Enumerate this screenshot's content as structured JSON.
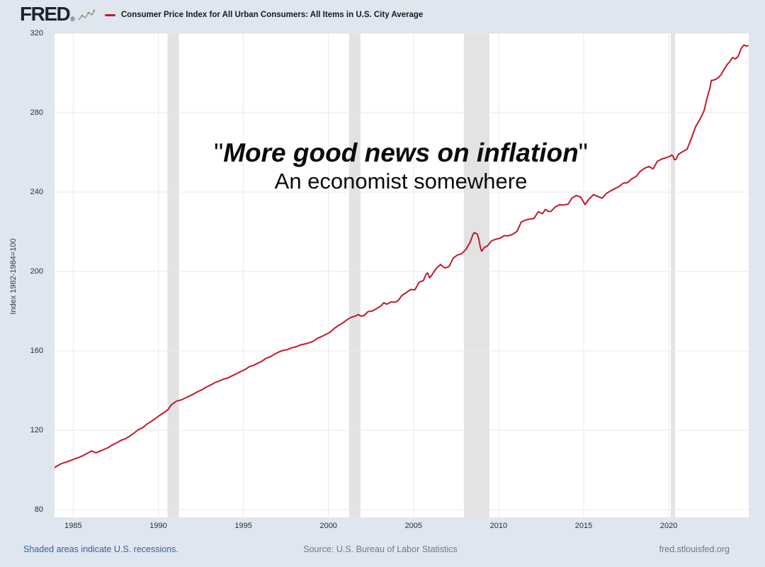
{
  "header": {
    "logo_text": "FRED",
    "registered": "®",
    "logo_icon": "line-chart-icon",
    "legend": {
      "marker": "red-line-legend-marker",
      "label": "Consumer Price Index for All Urban Consumers: All Items in U.S. City Average"
    }
  },
  "annotation": {
    "open_quote": "\"",
    "line1": "More good news on inflation",
    "close_quote": "\"",
    "line2": "An economist somewhere"
  },
  "footer": {
    "recessions_note": "Shaded areas indicate U.S. recessions.",
    "source": "Source: U.S. Bureau of Labor Statistics",
    "site": "fred.stlouisfed.org"
  },
  "colors": {
    "background": "#dfe6ef",
    "plot_background": "#ffffff",
    "line": "#bf1b2c",
    "recession_band": "#e3e3e3",
    "gridline": "#eaeaea",
    "link_blue": "#3a5e94"
  },
  "chart_data": {
    "type": "line",
    "title": "Consumer Price Index for All Urban Consumers: All Items in U.S. City Average",
    "xlabel": "",
    "ylabel": "Index 1982-1984=100",
    "x_range": [
      1983.9,
      2024.7
    ],
    "ylim": [
      80,
      320
    ],
    "y_ticks": [
      80,
      120,
      160,
      200,
      240,
      280,
      320
    ],
    "x_ticks": [
      1985,
      1990,
      1995,
      2000,
      2005,
      2010,
      2015,
      2020
    ],
    "grid": true,
    "legend_position": "top-left-header",
    "recession_bands": [
      [
        1990.54,
        1991.21
      ],
      [
        2001.21,
        2001.88
      ],
      [
        2007.96,
        2009.46
      ],
      [
        2020.12,
        2020.37
      ]
    ],
    "series": [
      {
        "name": "Consumer Price Index for All Urban Consumers: All Items in U.S. City Average",
        "units": "Index 1982-1984=100",
        "points": [
          [
            1983.9,
            101.2
          ],
          [
            1984.08,
            102.1
          ],
          [
            1984.33,
            103.3
          ],
          [
            1984.58,
            103.9
          ],
          [
            1984.83,
            104.7
          ],
          [
            1985.08,
            105.5
          ],
          [
            1985.33,
            106.3
          ],
          [
            1985.58,
            107.2
          ],
          [
            1985.83,
            108.4
          ],
          [
            1986.08,
            109.6
          ],
          [
            1986.33,
            108.6
          ],
          [
            1986.58,
            109.5
          ],
          [
            1986.83,
            110.4
          ],
          [
            1987.08,
            111.4
          ],
          [
            1987.33,
            112.7
          ],
          [
            1987.58,
            113.8
          ],
          [
            1987.83,
            115.0
          ],
          [
            1988.08,
            115.8
          ],
          [
            1988.33,
            117.1
          ],
          [
            1988.58,
            118.6
          ],
          [
            1988.83,
            120.3
          ],
          [
            1989.08,
            121.2
          ],
          [
            1989.33,
            123.1
          ],
          [
            1989.58,
            124.4
          ],
          [
            1989.83,
            125.9
          ],
          [
            1990.08,
            127.5
          ],
          [
            1990.33,
            128.9
          ],
          [
            1990.58,
            130.5
          ],
          [
            1990.75,
            132.7
          ],
          [
            1990.92,
            133.8
          ],
          [
            1991.08,
            134.7
          ],
          [
            1991.33,
            135.2
          ],
          [
            1991.58,
            136.2
          ],
          [
            1991.83,
            137.2
          ],
          [
            1992.08,
            138.3
          ],
          [
            1992.33,
            139.5
          ],
          [
            1992.58,
            140.5
          ],
          [
            1992.83,
            141.8
          ],
          [
            1993.08,
            142.8
          ],
          [
            1993.33,
            144.0
          ],
          [
            1993.58,
            144.8
          ],
          [
            1993.83,
            145.8
          ],
          [
            1994.08,
            146.3
          ],
          [
            1994.33,
            147.4
          ],
          [
            1994.58,
            148.4
          ],
          [
            1994.83,
            149.5
          ],
          [
            1995.08,
            150.5
          ],
          [
            1995.33,
            151.9
          ],
          [
            1995.58,
            152.6
          ],
          [
            1995.83,
            153.7
          ],
          [
            1996.08,
            154.7
          ],
          [
            1996.33,
            156.3
          ],
          [
            1996.58,
            157.0
          ],
          [
            1996.83,
            158.3
          ],
          [
            1997.08,
            159.4
          ],
          [
            1997.33,
            160.2
          ],
          [
            1997.58,
            160.6
          ],
          [
            1997.83,
            161.5
          ],
          [
            1998.08,
            162.0
          ],
          [
            1998.33,
            162.9
          ],
          [
            1998.58,
            163.4
          ],
          [
            1998.83,
            164.0
          ],
          [
            1999.08,
            164.7
          ],
          [
            1999.33,
            166.2
          ],
          [
            1999.58,
            167.1
          ],
          [
            1999.83,
            168.2
          ],
          [
            2000.08,
            169.3
          ],
          [
            2000.33,
            171.2
          ],
          [
            2000.58,
            172.7
          ],
          [
            2000.83,
            174.0
          ],
          [
            2001.08,
            175.6
          ],
          [
            2001.33,
            176.9
          ],
          [
            2001.58,
            177.5
          ],
          [
            2001.75,
            178.3
          ],
          [
            2001.92,
            177.5
          ],
          [
            2002.08,
            177.7
          ],
          [
            2002.33,
            179.8
          ],
          [
            2002.58,
            180.1
          ],
          [
            2002.83,
            181.3
          ],
          [
            2003.08,
            182.6
          ],
          [
            2003.25,
            184.2
          ],
          [
            2003.42,
            183.5
          ],
          [
            2003.67,
            184.6
          ],
          [
            2003.92,
            184.5
          ],
          [
            2004.08,
            185.2
          ],
          [
            2004.33,
            188.0
          ],
          [
            2004.58,
            189.4
          ],
          [
            2004.83,
            190.9
          ],
          [
            2005.08,
            190.7
          ],
          [
            2005.33,
            194.6
          ],
          [
            2005.58,
            195.4
          ],
          [
            2005.75,
            198.8
          ],
          [
            2005.83,
            199.2
          ],
          [
            2005.95,
            196.8
          ],
          [
            2006.08,
            198.3
          ],
          [
            2006.33,
            201.5
          ],
          [
            2006.58,
            203.5
          ],
          [
            2006.83,
            201.8
          ],
          [
            2007.08,
            202.4
          ],
          [
            2007.33,
            206.7
          ],
          [
            2007.58,
            208.3
          ],
          [
            2007.83,
            208.9
          ],
          [
            2008.08,
            211.1
          ],
          [
            2008.33,
            214.8
          ],
          [
            2008.5,
            218.8
          ],
          [
            2008.58,
            219.6
          ],
          [
            2008.67,
            219.1
          ],
          [
            2008.75,
            218.8
          ],
          [
            2008.83,
            216.6
          ],
          [
            2008.92,
            212.4
          ],
          [
            2009.0,
            210.2
          ],
          [
            2009.08,
            211.1
          ],
          [
            2009.17,
            212.2
          ],
          [
            2009.33,
            212.7
          ],
          [
            2009.58,
            215.4
          ],
          [
            2009.83,
            216.2
          ],
          [
            2010.08,
            216.7
          ],
          [
            2010.33,
            218.0
          ],
          [
            2010.58,
            218.0
          ],
          [
            2010.83,
            218.7
          ],
          [
            2011.08,
            220.2
          ],
          [
            2011.33,
            224.9
          ],
          [
            2011.58,
            225.9
          ],
          [
            2011.83,
            226.4
          ],
          [
            2012.08,
            226.7
          ],
          [
            2012.33,
            230.1
          ],
          [
            2012.58,
            229.1
          ],
          [
            2012.75,
            231.3
          ],
          [
            2012.92,
            230.2
          ],
          [
            2013.08,
            230.3
          ],
          [
            2013.33,
            232.5
          ],
          [
            2013.58,
            233.6
          ],
          [
            2013.83,
            233.5
          ],
          [
            2014.08,
            233.9
          ],
          [
            2014.33,
            237.1
          ],
          [
            2014.58,
            238.3
          ],
          [
            2014.83,
            237.4
          ],
          [
            2015.08,
            233.7
          ],
          [
            2015.33,
            236.6
          ],
          [
            2015.58,
            238.7
          ],
          [
            2015.83,
            237.8
          ],
          [
            2016.08,
            236.9
          ],
          [
            2016.33,
            239.3
          ],
          [
            2016.58,
            240.6
          ],
          [
            2016.83,
            241.7
          ],
          [
            2017.08,
            242.8
          ],
          [
            2017.33,
            244.5
          ],
          [
            2017.58,
            244.8
          ],
          [
            2017.83,
            246.7
          ],
          [
            2018.08,
            247.9
          ],
          [
            2018.33,
            250.5
          ],
          [
            2018.58,
            252.0
          ],
          [
            2018.83,
            252.9
          ],
          [
            2019.08,
            251.7
          ],
          [
            2019.33,
            255.5
          ],
          [
            2019.58,
            256.6
          ],
          [
            2019.83,
            257.3
          ],
          [
            2020.08,
            258.0
          ],
          [
            2020.17,
            258.7
          ],
          [
            2020.25,
            258.1
          ],
          [
            2020.33,
            256.4
          ],
          [
            2020.42,
            256.4
          ],
          [
            2020.58,
            259.1
          ],
          [
            2020.83,
            260.4
          ],
          [
            2021.08,
            261.6
          ],
          [
            2021.33,
            267.1
          ],
          [
            2021.58,
            273.0
          ],
          [
            2021.83,
            276.6
          ],
          [
            2022.08,
            281.1
          ],
          [
            2022.25,
            287.5
          ],
          [
            2022.42,
            292.3
          ],
          [
            2022.5,
            296.3
          ],
          [
            2022.58,
            296.3
          ],
          [
            2022.75,
            296.8
          ],
          [
            2022.92,
            297.7
          ],
          [
            2023.08,
            299.2
          ],
          [
            2023.25,
            301.8
          ],
          [
            2023.42,
            304.1
          ],
          [
            2023.58,
            305.7
          ],
          [
            2023.75,
            307.8
          ],
          [
            2023.92,
            307.1
          ],
          [
            2024.08,
            308.4
          ],
          [
            2024.25,
            312.3
          ],
          [
            2024.42,
            314.1
          ],
          [
            2024.58,
            313.5
          ],
          [
            2024.65,
            313.8
          ]
        ]
      }
    ]
  }
}
